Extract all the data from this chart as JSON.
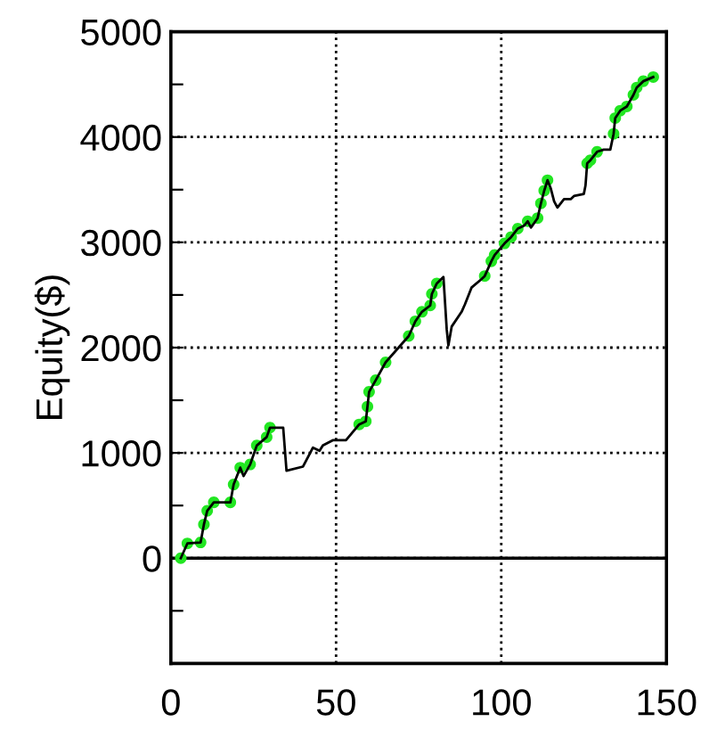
{
  "chart_data": {
    "type": "line",
    "ylabel": "Equity($)",
    "xlim": [
      0,
      150
    ],
    "xticks": [
      0,
      50,
      100,
      150
    ],
    "ylim": [
      -1000,
      5000
    ],
    "yticks": [
      {
        "value": -500,
        "label": null
      },
      0,
      {
        "value": 500,
        "label": null
      },
      1000,
      {
        "value": 1500,
        "label": null
      },
      2000,
      {
        "value": 2500,
        "label": null
      },
      3000,
      {
        "value": 3500,
        "label": null
      },
      4000,
      {
        "value": 4500,
        "label": null
      },
      5000
    ],
    "grid": true,
    "legend": false,
    "ref_lines": [
      {
        "axis": "y",
        "value": 0,
        "color": "#000000",
        "line_style": "solid"
      }
    ],
    "series": [
      {
        "color": "#000000",
        "x": [
          3,
          5,
          9,
          10,
          11,
          13,
          18,
          19,
          21,
          22,
          24,
          26,
          29,
          30,
          34,
          35,
          40,
          43,
          45,
          46,
          49,
          53,
          57,
          59,
          59.5,
          60,
          62,
          65,
          72,
          74,
          76,
          78.5,
          79,
          80.5,
          82.5,
          83.5,
          84,
          85,
          88,
          89,
          91,
          94,
          95,
          97,
          98,
          101,
          103,
          105,
          107,
          108,
          109,
          111,
          112,
          113,
          114,
          115,
          116,
          117,
          119,
          121,
          122,
          125,
          125.5,
          126,
          127,
          129,
          131,
          133,
          134,
          134.5,
          136,
          138,
          140,
          141,
          143,
          146
        ],
        "values": [
          0,
          140,
          150,
          320,
          450,
          530,
          530,
          700,
          860,
          780,
          890,
          1070,
          1150,
          1240,
          1240,
          830,
          870,
          1050,
          1020,
          1070,
          1120,
          1120,
          1270,
          1300,
          1440,
          1580,
          1690,
          1860,
          2110,
          2250,
          2340,
          2400,
          2510,
          2610,
          2670,
          2170,
          2020,
          2200,
          2340,
          2410,
          2570,
          2650,
          2680,
          2820,
          2880,
          2990,
          3050,
          3130,
          3160,
          3200,
          3140,
          3230,
          3370,
          3490,
          3590,
          3510,
          3390,
          3330,
          3410,
          3410,
          3440,
          3460,
          3540,
          3750,
          3780,
          3860,
          3880,
          3880,
          4030,
          4180,
          4250,
          4290,
          4400,
          4470,
          4530,
          4570
        ]
      },
      {
        "type": "scatter",
        "color": "#22e622",
        "marker": "circle",
        "x": [
          3,
          5,
          9,
          10,
          11,
          13,
          18,
          19,
          21,
          24,
          26,
          29,
          30,
          57,
          59,
          59.5,
          60,
          62,
          65,
          72,
          74,
          76,
          78.5,
          79,
          80.5,
          95,
          97,
          98,
          101,
          103,
          105,
          108,
          111,
          112,
          113,
          114,
          126,
          127,
          129,
          134,
          134.5,
          136,
          138,
          140,
          141,
          143,
          146
        ],
        "values": [
          0,
          140,
          150,
          320,
          450,
          530,
          530,
          700,
          860,
          890,
          1070,
          1150,
          1240,
          1270,
          1300,
          1440,
          1580,
          1690,
          1860,
          2110,
          2250,
          2340,
          2400,
          2510,
          2610,
          2680,
          2820,
          2880,
          2990,
          3050,
          3130,
          3200,
          3230,
          3370,
          3490,
          3590,
          3750,
          3780,
          3860,
          4030,
          4180,
          4250,
          4290,
          4400,
          4470,
          4530,
          4570
        ]
      }
    ]
  }
}
